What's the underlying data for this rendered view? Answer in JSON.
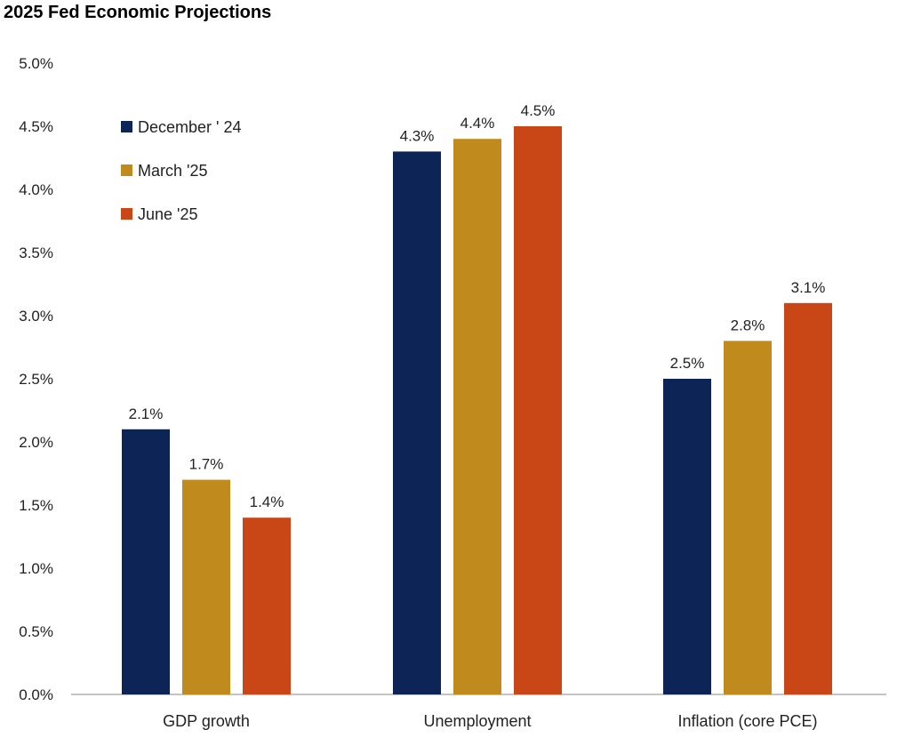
{
  "chart_data": {
    "type": "bar",
    "title": "2025 Fed Economic Projections",
    "categories": [
      "GDP growth",
      "Unemployment",
      "Inflation (core PCE)"
    ],
    "series": [
      {
        "name": "December ' 24",
        "values": [
          2.1,
          4.3,
          2.5
        ],
        "color": "#0d2457"
      },
      {
        "name": "March '25",
        "values": [
          1.7,
          4.4,
          2.8
        ],
        "color": "#c08a1d"
      },
      {
        "name": "June '25",
        "values": [
          1.4,
          4.5,
          3.1
        ],
        "color": "#c94616"
      }
    ],
    "data_labels": [
      [
        "2.1%",
        "4.3%",
        "2.5%"
      ],
      [
        "1.7%",
        "4.4%",
        "2.8%"
      ],
      [
        "1.4%",
        "4.5%",
        "3.1%"
      ]
    ],
    "y_ticks": [
      "0.0%",
      "0.5%",
      "1.0%",
      "1.5%",
      "2.0%",
      "2.5%",
      "3.0%",
      "3.5%",
      "4.0%",
      "4.5%",
      "5.0%"
    ],
    "ylim": [
      0,
      5
    ],
    "xlabel": "",
    "ylabel": "",
    "grid": false,
    "legend_position": "top-left"
  }
}
